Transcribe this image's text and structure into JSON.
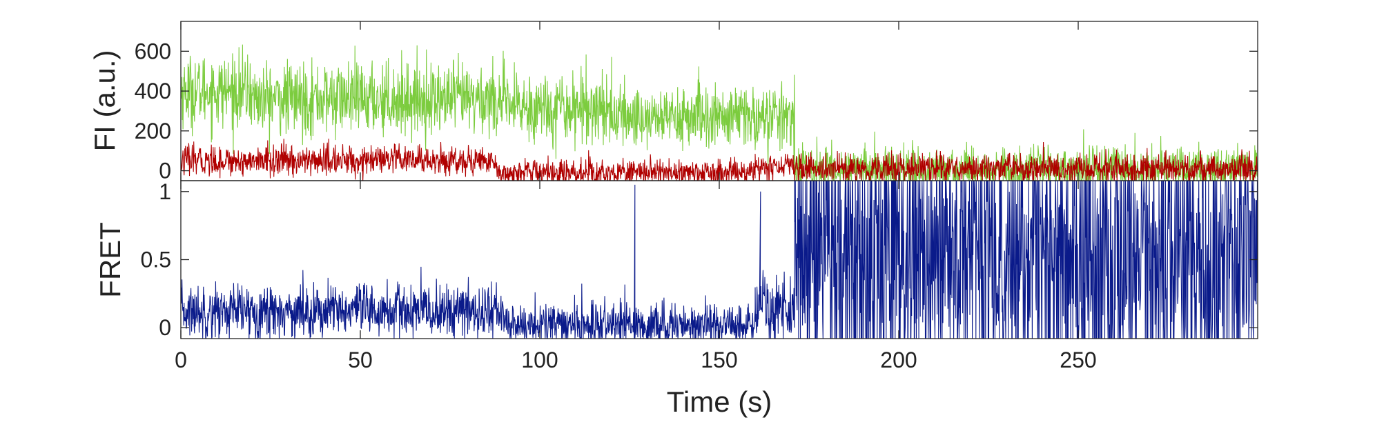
{
  "chart_data": [
    {
      "type": "line",
      "panel": "top",
      "ylabel": "FI (a.u.)",
      "xlabel": "",
      "xlim": [
        0,
        300
      ],
      "ylim": [
        -50,
        750
      ],
      "yticks": [
        0,
        200,
        400,
        600
      ],
      "yticklabels": [
        "0",
        "200",
        "400",
        "600"
      ],
      "xticks": [
        0,
        50,
        100,
        150,
        200,
        250
      ],
      "grid": false,
      "series": [
        {
          "color": "#7ccc3e",
          "sample_interval_s": 0.1,
          "segments": [
            {
              "from": 0,
              "to": 20,
              "mean": 400,
              "noise": 90
            },
            {
              "from": 20,
              "to": 90,
              "mean": 360,
              "noise": 90
            },
            {
              "from": 90,
              "to": 120,
              "mean": 320,
              "noise": 90
            },
            {
              "from": 120,
              "to": 171,
              "mean": 270,
              "noise": 80
            },
            {
              "from": 171,
              "to": 300,
              "mean": 10,
              "noise": 55
            }
          ]
        },
        {
          "color": "#b00000",
          "sample_interval_s": 0.1,
          "segments": [
            {
              "from": 0,
              "to": 88,
              "mean": 50,
              "noise": 38
            },
            {
              "from": 88,
              "to": 160,
              "mean": -10,
              "noise": 32
            },
            {
              "from": 160,
              "to": 171,
              "mean": 20,
              "noise": 32
            },
            {
              "from": 171,
              "to": 300,
              "mean": 10,
              "noise": 38
            }
          ]
        }
      ]
    },
    {
      "type": "line",
      "panel": "bottom",
      "ylabel": "FRET",
      "xlabel": "Time (s)",
      "xlim": [
        0,
        300
      ],
      "ylim": [
        -0.08,
        1.08
      ],
      "yticks": [
        0,
        0.5,
        1
      ],
      "yticklabels": [
        "0",
        "0.5",
        "1"
      ],
      "xticks": [
        0,
        50,
        100,
        150,
        200,
        250
      ],
      "xticklabels": [
        "0",
        "50",
        "100",
        "150",
        "200",
        "250"
      ],
      "grid": false,
      "series": [
        {
          "color": "#0a1a8a",
          "sample_interval_s": 0.1,
          "segments": [
            {
              "from": 0,
              "to": 90,
              "mean": 0.12,
              "noise": 0.1
            },
            {
              "from": 90,
              "to": 160,
              "mean": 0.02,
              "noise": 0.08
            },
            {
              "from": 160,
              "to": 171,
              "mean": 0.15,
              "noise": 0.12
            },
            {
              "from": 171,
              "to": 300,
              "mean": 0.45,
              "noise": 0.5
            }
          ],
          "spikes": [
            {
              "x": 126.5,
              "y": 1.05
            },
            {
              "x": 161.5,
              "y": 1.0
            }
          ]
        }
      ]
    }
  ]
}
